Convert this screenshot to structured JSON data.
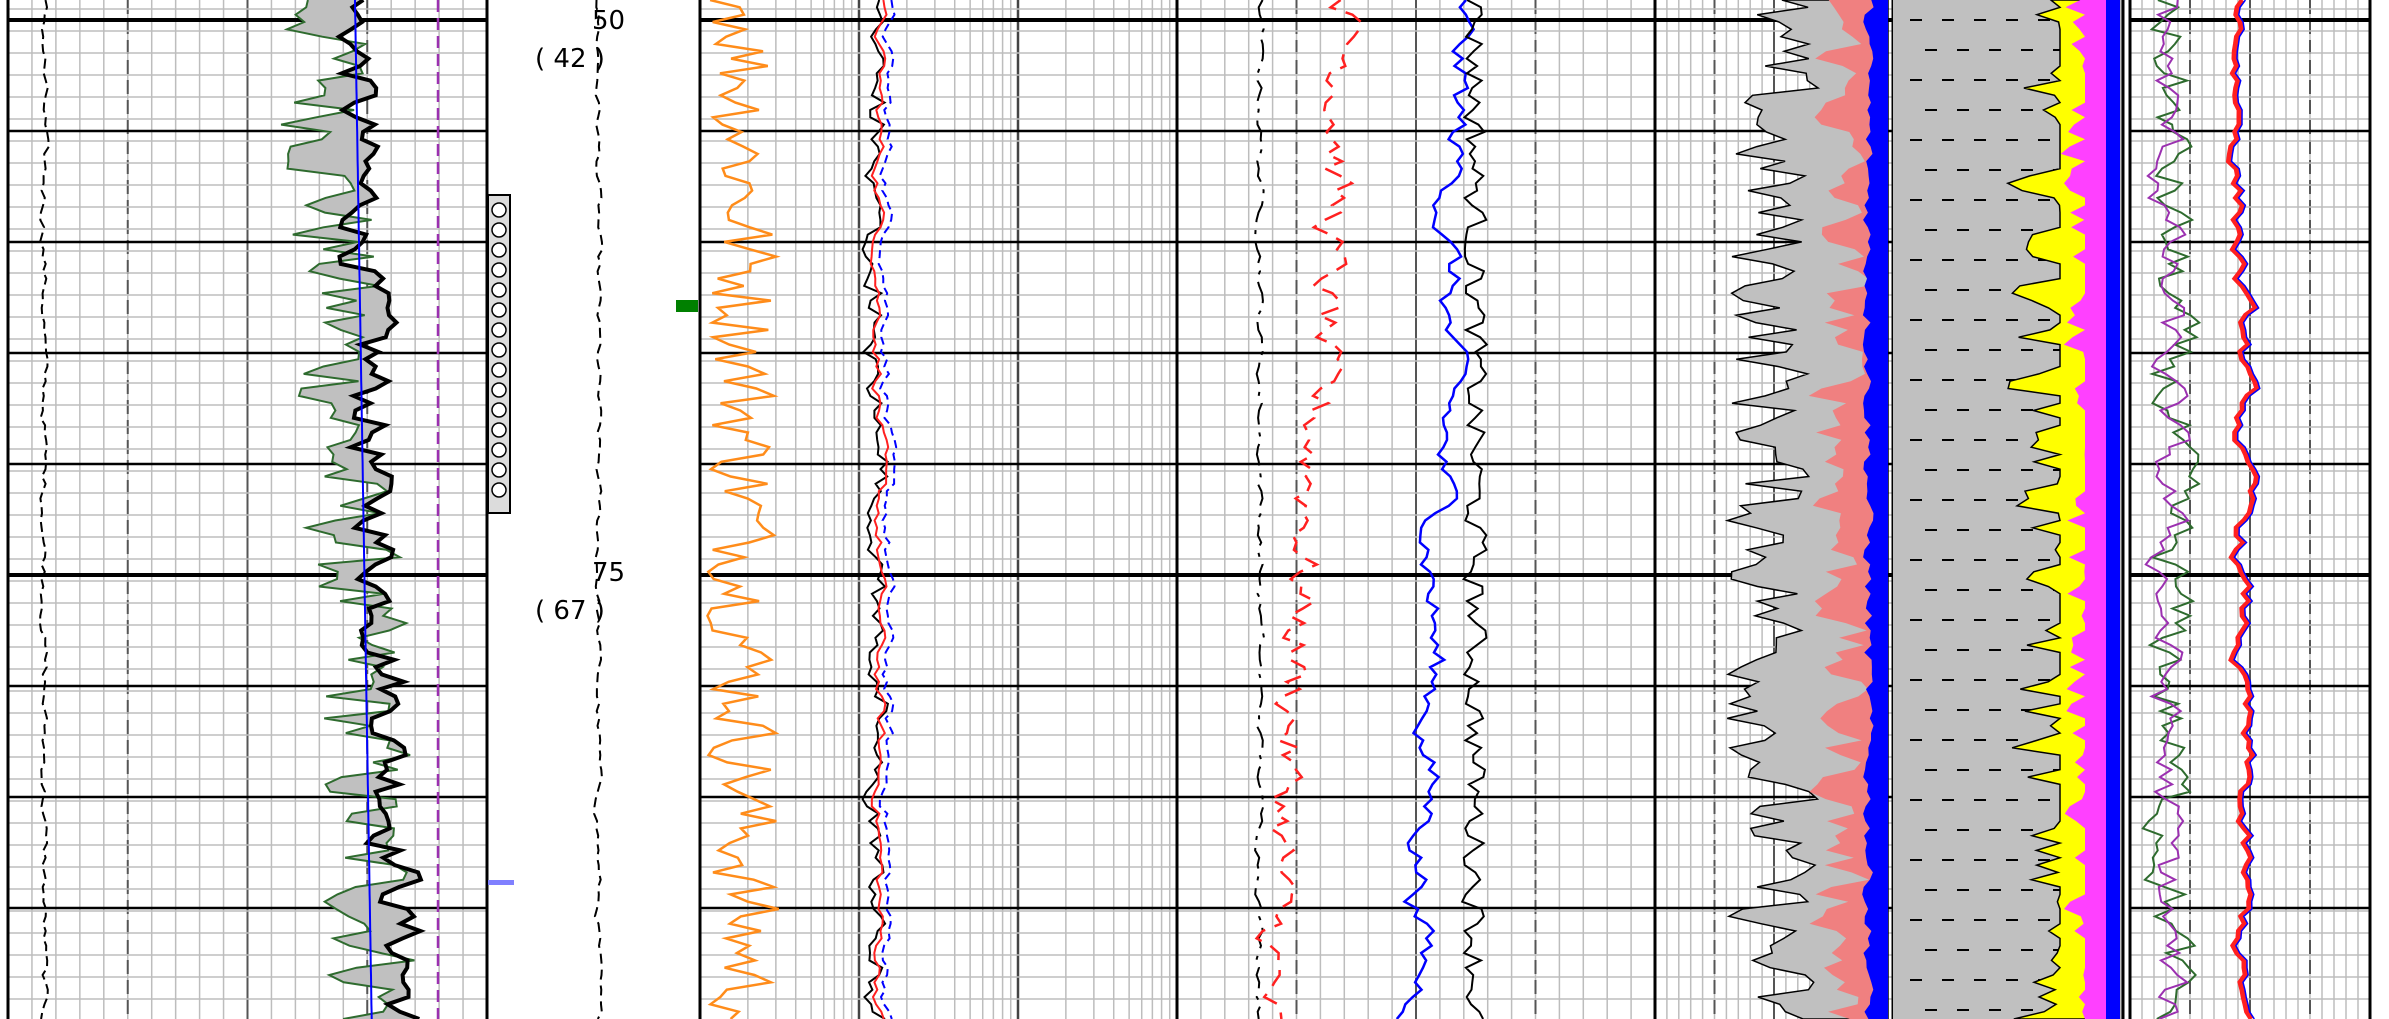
{
  "depth_track": {
    "marks": [
      {
        "depth": "50",
        "secondary": "( 42 )"
      },
      {
        "depth": "75",
        "secondary": "( 67 )"
      }
    ]
  },
  "colors": {
    "grid_minor": "#bdbdbd",
    "grid_major": "#000000",
    "shade_gray": "#c0c0c0",
    "green_curve": "#2e6b2e",
    "blue_curve": "#0000ff",
    "purple_dash": "#9b30b0",
    "orange_curve": "#ff8c1a",
    "red_curve": "#ff2020",
    "salmon_fill": "#f08080",
    "yellow_fill": "#ffff00",
    "magenta_fill": "#ff40ff",
    "dark_green_marker": "#008000",
    "lavender_marker": "#8080ff"
  },
  "chart_data": {
    "type": "line",
    "title": "",
    "xlabel": "",
    "ylabel": "",
    "depth_ticks": [
      "50",
      "75"
    ],
    "tracks": [
      {
        "name": "",
        "scale": "linear",
        "grid": true,
        "series": [
          "black-dashed-left",
          "green-shaded",
          "black-thick",
          "blue-thin",
          "purple-dashed"
        ]
      },
      {
        "name": "",
        "scale": "depth",
        "grid": false,
        "series": [
          "depth-dashed"
        ]
      },
      {
        "name": "",
        "scale": "log",
        "grid": true,
        "series": [
          "orange",
          "black",
          "red",
          "blue-dashed"
        ]
      },
      {
        "name": "",
        "scale": "linear",
        "grid": true,
        "series": [
          "black-dashdot",
          "red-dashed",
          "blue",
          "black-right"
        ]
      },
      {
        "name": "",
        "scale": "linear",
        "grid": true,
        "series": [
          "gray-fill",
          "salmon-fill",
          "blue-fill"
        ]
      },
      {
        "name": "",
        "scale": "lithology",
        "grid": false,
        "series": [
          "yellow-fill",
          "magenta-fill",
          "blue-edge"
        ]
      },
      {
        "name": "",
        "scale": "linear",
        "grid": true,
        "series": [
          "green",
          "purple",
          "red-thick",
          "blue-thin"
        ]
      }
    ]
  }
}
